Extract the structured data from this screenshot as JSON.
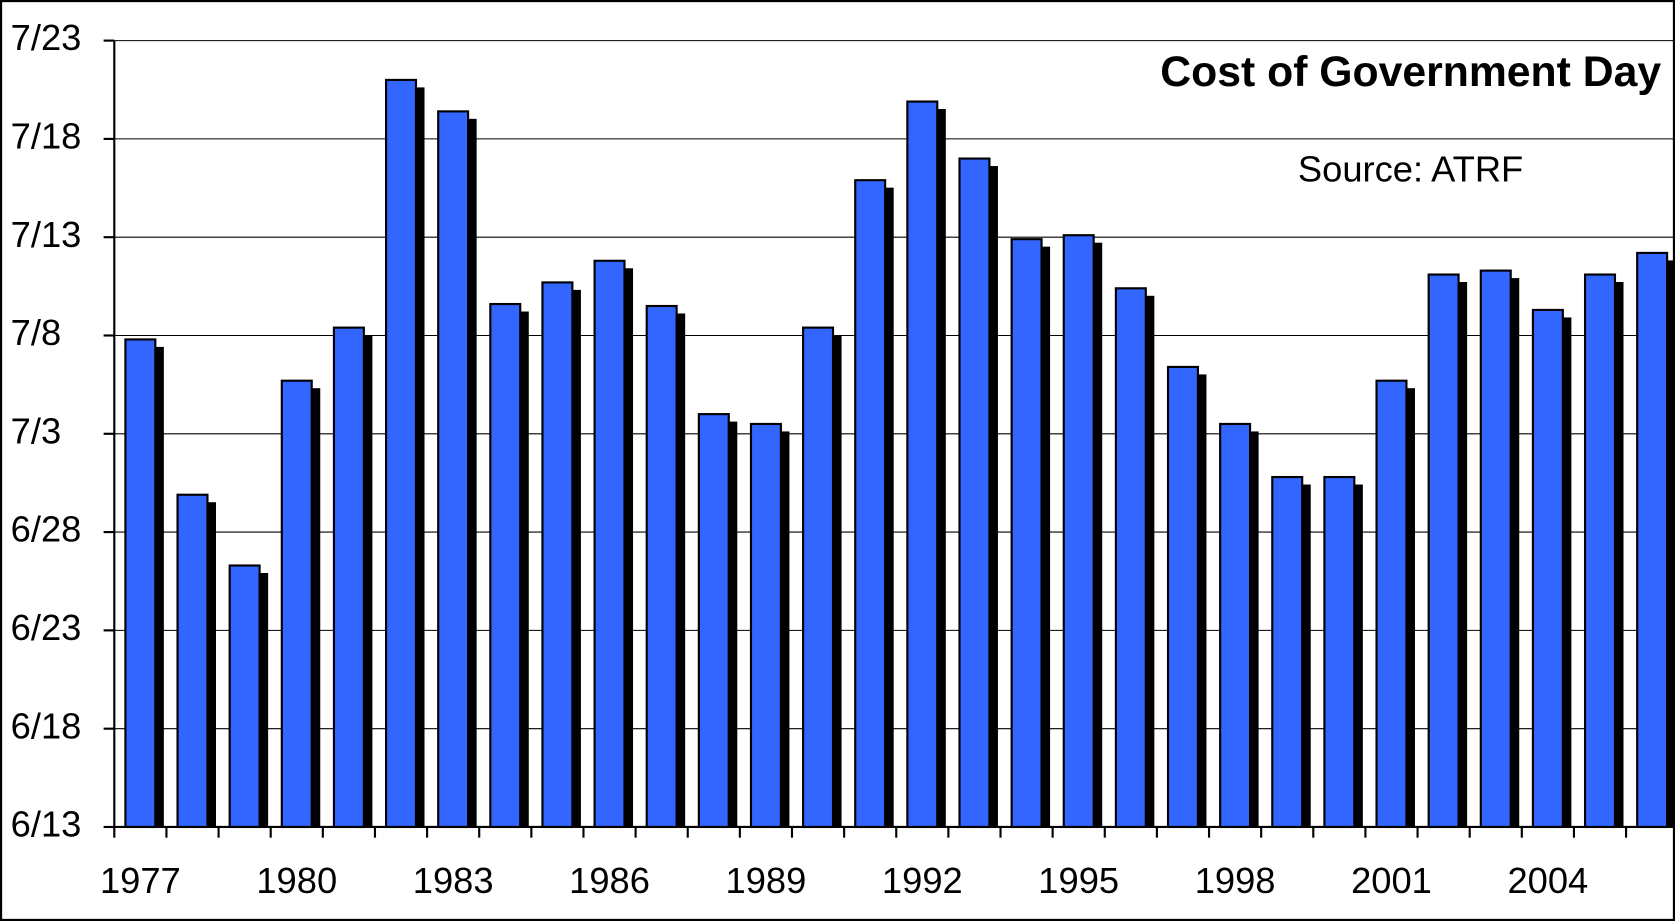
{
  "chart_data": {
    "type": "bar",
    "title": "Cost of Government Day",
    "annotation": "Source: ATRF",
    "categories": [
      "1977",
      null,
      null,
      "1980",
      null,
      null,
      "1983",
      null,
      null,
      "1986",
      null,
      null,
      "1989",
      null,
      null,
      "1992",
      null,
      null,
      "1995",
      null,
      null,
      "1998",
      null,
      null,
      "2001",
      null,
      null,
      "2004",
      null,
      null
    ],
    "values": [
      188.8,
      180.9,
      177.3,
      186.7,
      189.4,
      202.0,
      200.4,
      190.6,
      191.7,
      192.8,
      190.5,
      185.0,
      184.5,
      189.4,
      196.9,
      200.9,
      198.0,
      193.9,
      194.1,
      191.4,
      187.4,
      184.5,
      181.8,
      181.8,
      186.7,
      192.1,
      192.3,
      190.3,
      192.1,
      193.2
    ],
    "color": "#3366ff",
    "ylim": [
      164,
      204
    ],
    "yticks": [
      {
        "value": 164,
        "label": "6/13"
      },
      {
        "value": 169,
        "label": "6/18"
      },
      {
        "value": 174,
        "label": "6/23"
      },
      {
        "value": 179,
        "label": "6/28"
      },
      {
        "value": 184,
        "label": "7/3"
      },
      {
        "value": 189,
        "label": "7/8"
      },
      {
        "value": 194,
        "label": "7/13"
      },
      {
        "value": 199,
        "label": "7/18"
      },
      {
        "value": 204,
        "label": "7/23"
      }
    ],
    "grid": true
  }
}
